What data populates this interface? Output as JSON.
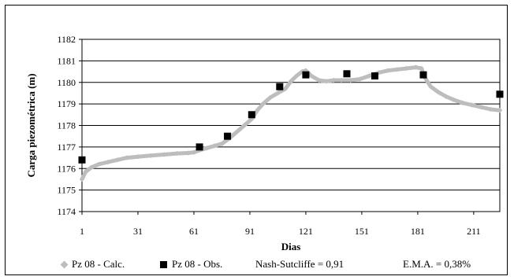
{
  "chart_data": {
    "type": "line",
    "xlabel": "Dias",
    "ylabel": "Carga piezométrica (m)",
    "xlim": [
      1,
      225
    ],
    "ylim": [
      1174,
      1182
    ],
    "xticks": [
      1,
      31,
      61,
      91,
      121,
      151,
      181,
      211
    ],
    "yticks": [
      1174,
      1175,
      1176,
      1177,
      1178,
      1179,
      1180,
      1181,
      1182
    ],
    "grid": "horizontal",
    "series": [
      {
        "name": "Pz 08 - Calc.",
        "marker": "diamond",
        "color": "#bdbdbd",
        "x": [
          1,
          3,
          6,
          10,
          15,
          20,
          25,
          31,
          38,
          45,
          52,
          58,
          61,
          64,
          68,
          72,
          76,
          80,
          84,
          88,
          92,
          95,
          98,
          102,
          106,
          110,
          113,
          116,
          119,
          121,
          124,
          128,
          132,
          136,
          140,
          145,
          150,
          155,
          160,
          165,
          170,
          175,
          180,
          183,
          185,
          188,
          192,
          196,
          200,
          205,
          210,
          215,
          220,
          225
        ],
        "y": [
          1175.5,
          1175.85,
          1176.05,
          1176.2,
          1176.3,
          1176.4,
          1176.5,
          1176.55,
          1176.6,
          1176.65,
          1176.7,
          1176.72,
          1176.75,
          1176.85,
          1176.95,
          1177.05,
          1177.15,
          1177.4,
          1177.7,
          1178.0,
          1178.3,
          1178.7,
          1179.0,
          1179.3,
          1179.5,
          1179.7,
          1180.05,
          1180.3,
          1180.5,
          1180.55,
          1180.3,
          1180.1,
          1180.05,
          1180.1,
          1180.1,
          1180.1,
          1180.15,
          1180.3,
          1180.45,
          1180.55,
          1180.6,
          1180.65,
          1180.7,
          1180.65,
          1180.2,
          1179.8,
          1179.55,
          1179.35,
          1179.2,
          1179.05,
          1178.95,
          1178.85,
          1178.75,
          1178.7
        ]
      },
      {
        "name": "Pz 08 - Obs.",
        "marker": "square",
        "color": "#000000",
        "x": [
          1,
          64,
          79,
          92,
          107,
          121,
          143,
          158,
          184,
          225
        ],
        "y": [
          1176.4,
          1177.0,
          1177.5,
          1178.5,
          1179.8,
          1180.35,
          1180.4,
          1180.3,
          1180.35,
          1179.45
        ]
      }
    ],
    "annotations": [
      "Nash-Sutcliffe = 0,91",
      "E.M.A. = 0,38%"
    ]
  }
}
